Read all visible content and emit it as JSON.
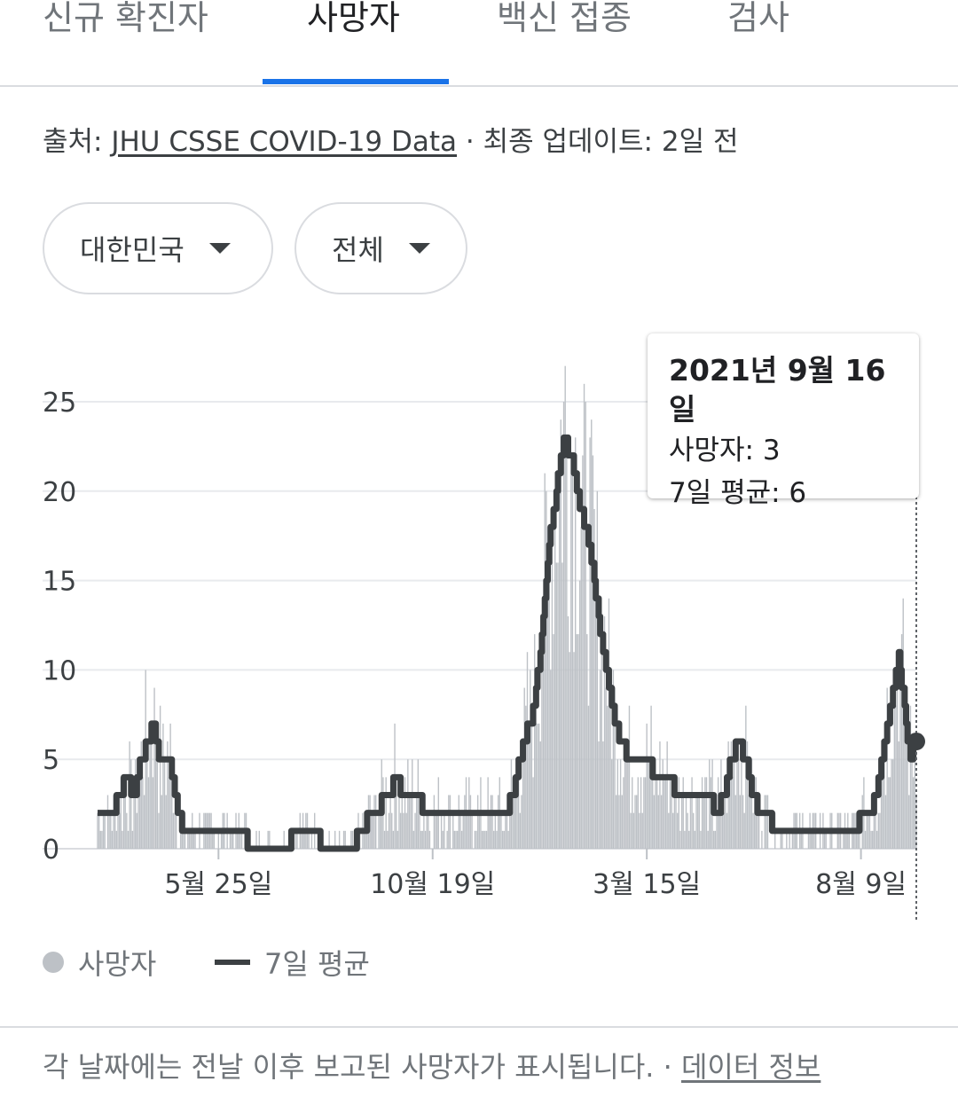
{
  "tabs": [
    {
      "label": "신규 확진자",
      "active": false
    },
    {
      "label": "사망자",
      "active": true
    },
    {
      "label": "백신 접종",
      "active": false
    },
    {
      "label": "검사",
      "active": false
    }
  ],
  "source": {
    "prefix": "출처: ",
    "link_text": "JHU CSSE COVID-19 Data",
    "separator": " · ",
    "updated": "최종 업데이트: 2일 전"
  },
  "filters": {
    "region": "대한민국",
    "range": "전체"
  },
  "tooltip": {
    "date": "2021년 9월 16일",
    "deaths": "사망자: 3",
    "avg": "7일 평균: 6"
  },
  "legend": {
    "deaths": "사망자",
    "avg": "7일 평균"
  },
  "footer": {
    "text": "각 날짜에는 전날 이후 보고된 사망자가 표시됩니다.",
    "separator": " · ",
    "link": "데이터 정보"
  },
  "colors": {
    "bars": "#bdc1c6",
    "avg_line": "#3c4043",
    "accent": "#1a73e8",
    "grid": "#e8eaed"
  },
  "chart_data": {
    "type": "bar",
    "ylim": [
      0,
      29
    ],
    "yticks": [
      0,
      5,
      10,
      15,
      20,
      25
    ],
    "xtick_labels": [
      "5월 25일",
      "10월 19일",
      "3월 15일",
      "8월 9일"
    ],
    "xtick_index": [
      83,
      230,
      377,
      524
    ],
    "highlight_index": 562,
    "series": [
      {
        "name": "사망자",
        "type": "bar",
        "values": []
      },
      {
        "name": "7일 평균",
        "type": "line",
        "keypoints": [
          [
            0,
            2
          ],
          [
            10,
            2
          ],
          [
            15,
            3
          ],
          [
            20,
            4
          ],
          [
            25,
            3
          ],
          [
            30,
            5
          ],
          [
            35,
            6
          ],
          [
            38,
            7
          ],
          [
            42,
            5
          ],
          [
            48,
            5
          ],
          [
            52,
            4
          ],
          [
            55,
            2
          ],
          [
            60,
            1
          ],
          [
            80,
            1
          ],
          [
            100,
            1
          ],
          [
            105,
            0
          ],
          [
            130,
            0
          ],
          [
            135,
            1
          ],
          [
            150,
            1
          ],
          [
            155,
            0
          ],
          [
            175,
            0
          ],
          [
            180,
            1
          ],
          [
            190,
            2
          ],
          [
            200,
            3
          ],
          [
            205,
            4
          ],
          [
            210,
            3
          ],
          [
            220,
            3
          ],
          [
            225,
            2
          ],
          [
            270,
            2
          ],
          [
            280,
            2
          ],
          [
            285,
            3
          ],
          [
            290,
            5
          ],
          [
            300,
            8
          ],
          [
            305,
            12
          ],
          [
            310,
            17
          ],
          [
            315,
            20
          ],
          [
            320,
            23
          ],
          [
            325,
            22
          ],
          [
            332,
            19
          ],
          [
            340,
            16
          ],
          [
            345,
            12
          ],
          [
            350,
            10
          ],
          [
            355,
            7
          ],
          [
            360,
            6
          ],
          [
            365,
            5
          ],
          [
            375,
            5
          ],
          [
            385,
            4
          ],
          [
            390,
            4
          ],
          [
            400,
            3
          ],
          [
            410,
            3
          ],
          [
            420,
            3
          ],
          [
            425,
            2
          ],
          [
            430,
            3
          ],
          [
            435,
            5
          ],
          [
            440,
            6
          ],
          [
            445,
            5
          ],
          [
            450,
            3
          ],
          [
            455,
            2
          ],
          [
            470,
            1
          ],
          [
            500,
            1
          ],
          [
            520,
            1
          ],
          [
            525,
            2
          ],
          [
            530,
            2
          ],
          [
            535,
            3
          ],
          [
            540,
            6
          ],
          [
            545,
            8
          ],
          [
            550,
            11
          ],
          [
            555,
            7
          ],
          [
            558,
            5
          ],
          [
            562,
            6
          ]
        ]
      }
    ]
  }
}
